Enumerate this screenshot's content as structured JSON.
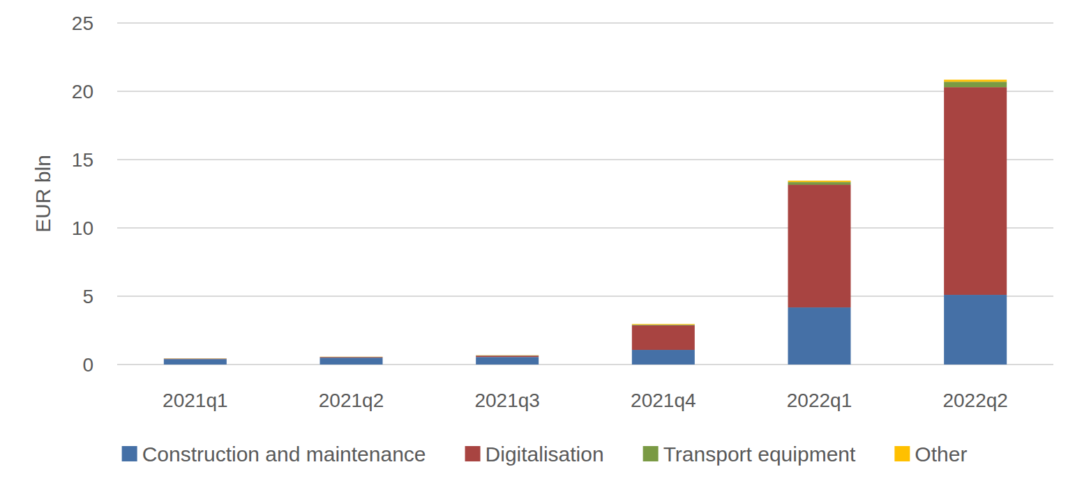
{
  "chart_data": {
    "type": "bar",
    "stacked": true,
    "y_label": "EUR bln",
    "categories": [
      "2021q1",
      "2021q2",
      "2021q3",
      "2021q4",
      "2022q1",
      "2022q2"
    ],
    "series": [
      {
        "name": "Construction and maintenance",
        "color": "#4570a6",
        "values": [
          0.4,
          0.5,
          0.55,
          1.07,
          4.18,
          5.1
        ]
      },
      {
        "name": "Digitalisation",
        "color": "#a84441",
        "values": [
          0.03,
          0.05,
          0.1,
          1.8,
          8.98,
          15.2
        ]
      },
      {
        "name": "Transport equipment",
        "color": "#7a9a44",
        "values": [
          0.01,
          0.01,
          0.02,
          0.05,
          0.2,
          0.4
        ]
      },
      {
        "name": "Other",
        "color": "#ffc000",
        "values": [
          0.01,
          0.01,
          0.01,
          0.05,
          0.1,
          0.15
        ]
      }
    ],
    "ylim": [
      0,
      25
    ],
    "yticks": [
      0,
      5,
      10,
      15,
      20,
      25
    ],
    "grid": true,
    "legend": "bottom"
  }
}
